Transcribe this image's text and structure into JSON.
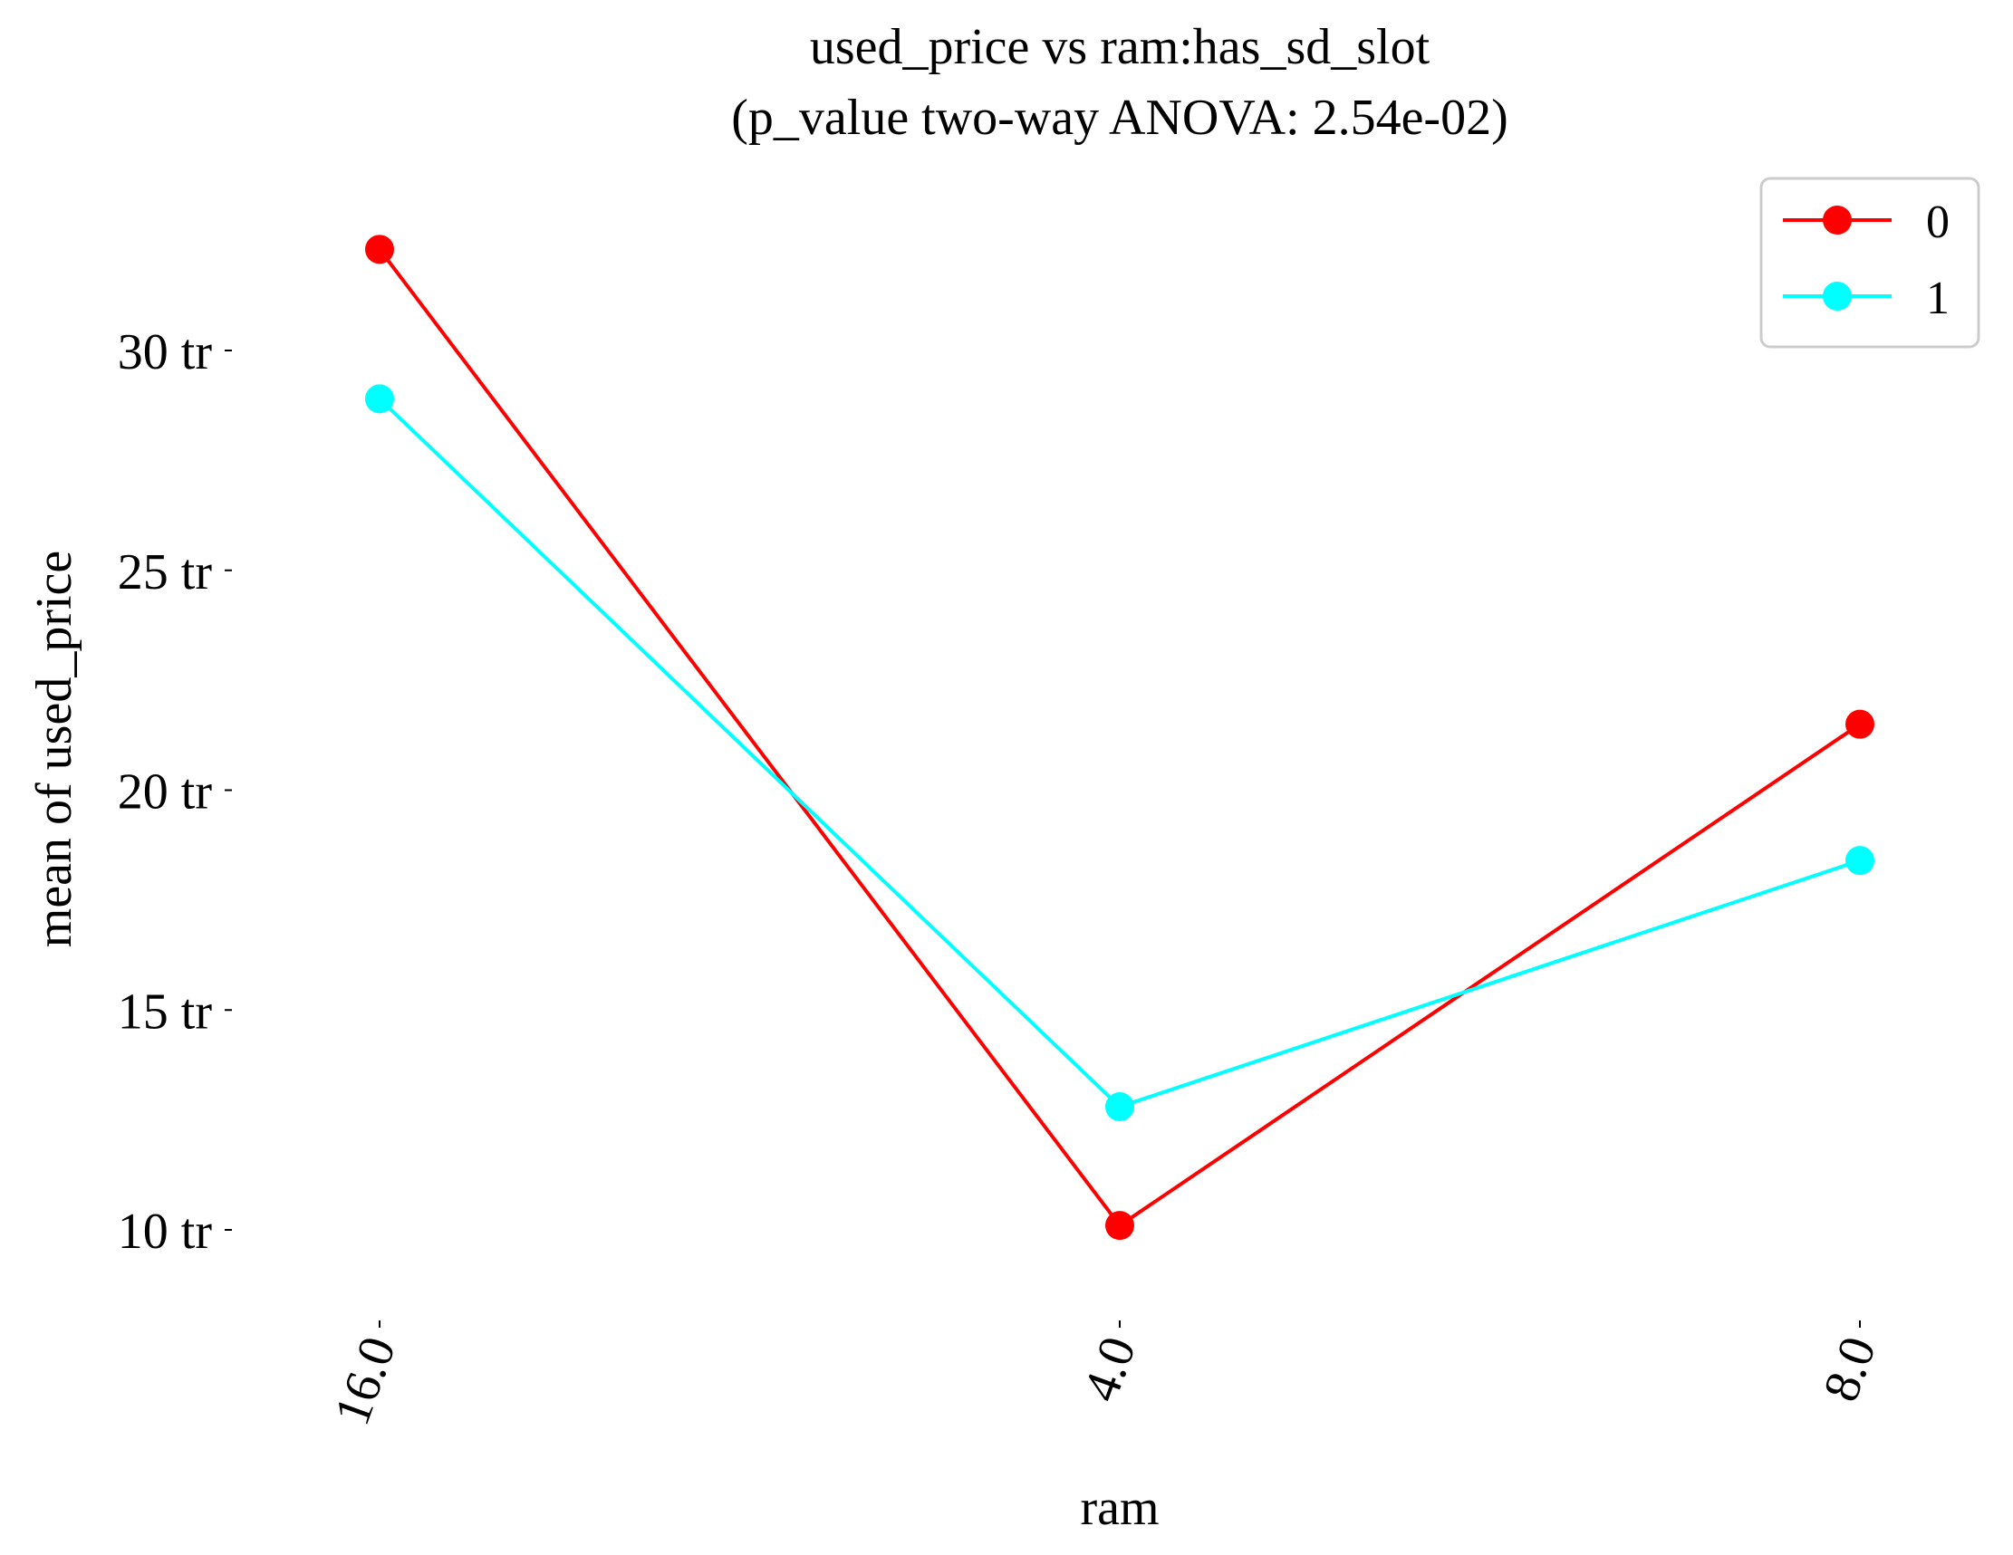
{
  "chart_data": {
    "type": "line",
    "title_line1": "used_price vs ram:has_sd_slot",
    "title_line2": "(p_value two-way ANOVA: 2.54e-02)",
    "xlabel": "ram",
    "ylabel": "mean of used_price",
    "categories": [
      "16.0",
      "4.0",
      "8.0"
    ],
    "y_ticks": [
      {
        "value": 10,
        "label": "10 tr"
      },
      {
        "value": 15,
        "label": "15 tr"
      },
      {
        "value": 20,
        "label": "20 tr"
      },
      {
        "value": 25,
        "label": "25 tr"
      },
      {
        "value": 30,
        "label": "30 tr"
      }
    ],
    "ylim": [
      8.2,
      33.5
    ],
    "grid": false,
    "legend_position": "top-right",
    "series": [
      {
        "name": "0",
        "color": "#ff0000",
        "values": [
          32.3,
          10.1,
          21.5
        ]
      },
      {
        "name": "1",
        "color": "#00ffff",
        "values": [
          28.9,
          12.8,
          18.4
        ]
      }
    ]
  }
}
